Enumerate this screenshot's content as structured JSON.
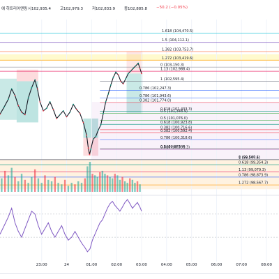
{
  "header": {
    "title": "에 히트리어엔링",
    "open": "시102,935.4",
    "high": "고102,979.3",
    "low": "저102,833.9",
    "close": "종102,885.8",
    "change": "−50.2 (−0.05%)"
  },
  "chart_data": {
    "type": "candlestick",
    "ylim": [
      98300,
      105000
    ],
    "xlim_minutes": [
      -100,
      570
    ],
    "time_axis": [
      "23:00",
      "24",
      "01:00",
      "02:00",
      "03:00",
      "04:00",
      "05:00",
      "06:00",
      "07:00",
      "08:00"
    ],
    "time_axis_minutes": [
      0,
      60,
      120,
      180,
      240,
      300,
      360,
      420,
      480,
      540
    ],
    "price_series": [
      [
        -100,
        101320
      ],
      [
        -90,
        101600
      ],
      [
        -80,
        101900
      ],
      [
        -72,
        102300
      ],
      [
        -64,
        102050
      ],
      [
        -56,
        101650
      ],
      [
        -48,
        101400
      ],
      [
        -40,
        101300
      ],
      [
        -32,
        101950
      ],
      [
        -24,
        102350
      ],
      [
        -16,
        102650
      ],
      [
        -10,
        102300
      ],
      [
        -4,
        101800
      ],
      [
        4,
        101450
      ],
      [
        12,
        101550
      ],
      [
        20,
        101800
      ],
      [
        28,
        101500
      ],
      [
        36,
        101150
      ],
      [
        44,
        101300
      ],
      [
        52,
        101450
      ],
      [
        60,
        101220
      ],
      [
        68,
        101400
      ],
      [
        76,
        101700
      ],
      [
        84,
        101500
      ],
      [
        92,
        101350
      ],
      [
        100,
        101000
      ],
      [
        108,
        100500
      ],
      [
        112,
        100000
      ],
      [
        115,
        99750
      ],
      [
        118,
        99950
      ],
      [
        124,
        100350
      ],
      [
        130,
        100450
      ],
      [
        136,
        100700
      ],
      [
        142,
        100900
      ],
      [
        148,
        101350
      ],
      [
        154,
        101800
      ],
      [
        160,
        102100
      ],
      [
        166,
        102450
      ],
      [
        172,
        102750
      ],
      [
        178,
        102950
      ],
      [
        184,
        102850
      ],
      [
        190,
        102600
      ],
      [
        196,
        102500
      ],
      [
        202,
        102700
      ],
      [
        208,
        102900
      ],
      [
        214,
        103000
      ],
      [
        220,
        103100
      ],
      [
        226,
        103200
      ],
      [
        232,
        103300
      ],
      [
        236,
        103100
      ],
      [
        240,
        102900
      ]
    ],
    "fib_levels": [
      {
        "label": "1.618 (104,470.5)",
        "value": 104470.5
      },
      {
        "label": "1.5 (104,112.1)",
        "value": 104112.1
      },
      {
        "label": "1.382 (103,753.7)",
        "value": 103753.7
      },
      {
        "label": "1.272 (103,419.6)",
        "value": 103419.6
      },
      {
        "label": "0 (103,150.3)",
        "value": 103150.3
      },
      {
        "label": "1.13 (102,988.4)",
        "value": 102988.4
      },
      {
        "label": "1 (102,595.4)",
        "value": 102595.4
      },
      {
        "label": "0.786 (102,247.3)",
        "value": 102247.3
      },
      {
        "label": "0.786 (101,943.6)",
        "value": 101943.6
      },
      {
        "label": "0.382 (101,774.0)",
        "value": 101774.0
      },
      {
        "label": "0.618 (101,433.3)",
        "value": 101433.3
      },
      {
        "label": "0.5 (101,348.9)",
        "value": 101348.9
      },
      {
        "label": "0.5 (101,076.0)",
        "value": 101076.0
      },
      {
        "label": "0.618 (100,923.8)",
        "value": 100923.8
      },
      {
        "label": "0.382 (100,716.6)",
        "value": 100716.6
      },
      {
        "label": "0.382 (100,592.4)",
        "value": 100592.4
      },
      {
        "label": "0.786 (100,318.6)",
        "value": 100318.6
      },
      {
        "label": "0.5 (99,973.4)",
        "value": 99973.4
      },
      {
        "label": "0.886 (99,958.3)",
        "value": 99958.3
      },
      {
        "label": "0 (99,560.1)",
        "value": 99560.1
      },
      {
        "label": "1 (99,547.6)",
        "value": 99547.6
      },
      {
        "label": "0.618 (99,354.3)",
        "value": 99354.3
      },
      {
        "label": "1.13 (99,079.3)",
        "value": 99079.3
      },
      {
        "label": "0.786 (98,873.9)",
        "value": 98873.9
      },
      {
        "label": "1.272 (98,567.7)",
        "value": 98567.7
      }
    ],
    "volume": [
      [
        -96,
        0.45
      ],
      [
        -88,
        0.7
      ],
      [
        -80,
        0.55
      ],
      [
        -72,
        0.8
      ],
      [
        -64,
        0.5
      ],
      [
        -56,
        0.35
      ],
      [
        -48,
        0.6
      ],
      [
        -40,
        0.4
      ],
      [
        -32,
        0.3
      ],
      [
        -24,
        0.5
      ],
      [
        -16,
        0.75
      ],
      [
        -8,
        0.45
      ],
      [
        0,
        0.3
      ],
      [
        8,
        0.55
      ],
      [
        16,
        0.4
      ],
      [
        24,
        0.35
      ],
      [
        32,
        0.5
      ],
      [
        40,
        0.3
      ],
      [
        48,
        0.25
      ],
      [
        56,
        0.4
      ],
      [
        64,
        0.2
      ],
      [
        72,
        0.3
      ],
      [
        80,
        0.25
      ],
      [
        88,
        0.35
      ],
      [
        96,
        0.3
      ],
      [
        104,
        0.45
      ],
      [
        110,
        0.85
      ],
      [
        116,
        1.0
      ],
      [
        122,
        0.6
      ],
      [
        128,
        0.55
      ],
      [
        134,
        0.5
      ],
      [
        140,
        0.65
      ],
      [
        146,
        0.7
      ],
      [
        152,
        0.6
      ],
      [
        158,
        0.55
      ],
      [
        164,
        0.5
      ],
      [
        170,
        0.45
      ],
      [
        176,
        0.6
      ],
      [
        182,
        0.55
      ],
      [
        188,
        0.4
      ],
      [
        194,
        0.5
      ],
      [
        200,
        0.35
      ],
      [
        206,
        0.3
      ],
      [
        212,
        0.45
      ],
      [
        218,
        0.4
      ],
      [
        224,
        0.3
      ],
      [
        230,
        0.35
      ],
      [
        236,
        0.25
      ]
    ],
    "oscillator": [
      [
        -100,
        0.35
      ],
      [
        -90,
        0.5
      ],
      [
        -80,
        0.65
      ],
      [
        -72,
        0.8
      ],
      [
        -64,
        0.55
      ],
      [
        -56,
        0.4
      ],
      [
        -48,
        0.3
      ],
      [
        -40,
        0.45
      ],
      [
        -32,
        0.6
      ],
      [
        -24,
        0.75
      ],
      [
        -16,
        0.7
      ],
      [
        -8,
        0.5
      ],
      [
        0,
        0.35
      ],
      [
        8,
        0.45
      ],
      [
        16,
        0.55
      ],
      [
        24,
        0.4
      ],
      [
        32,
        0.3
      ],
      [
        40,
        0.4
      ],
      [
        48,
        0.5
      ],
      [
        56,
        0.35
      ],
      [
        64,
        0.25
      ],
      [
        72,
        0.3
      ],
      [
        80,
        0.4
      ],
      [
        88,
        0.3
      ],
      [
        96,
        0.2
      ],
      [
        104,
        0.12
      ],
      [
        110,
        0.05
      ],
      [
        116,
        0.1
      ],
      [
        122,
        0.25
      ],
      [
        128,
        0.35
      ],
      [
        134,
        0.45
      ],
      [
        140,
        0.55
      ],
      [
        146,
        0.6
      ],
      [
        152,
        0.7
      ],
      [
        158,
        0.8
      ],
      [
        164,
        0.88
      ],
      [
        170,
        0.92
      ],
      [
        176,
        0.85
      ],
      [
        182,
        0.8
      ],
      [
        188,
        0.75
      ],
      [
        194,
        0.82
      ],
      [
        200,
        0.9
      ],
      [
        206,
        0.95
      ],
      [
        212,
        0.88
      ],
      [
        218,
        0.8
      ],
      [
        224,
        0.85
      ],
      [
        230,
        0.9
      ],
      [
        236,
        0.82
      ],
      [
        240,
        0.75
      ]
    ]
  }
}
